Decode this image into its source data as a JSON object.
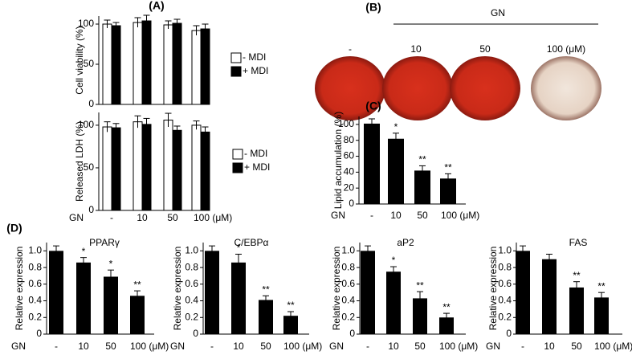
{
  "chart_data": [
    {
      "type": "bar",
      "panel": "(A)",
      "ylabel": "Cell viability (%)",
      "ylim": [
        0,
        110
      ],
      "yticks": [
        0,
        50,
        100
      ],
      "series": [
        {
          "name": "- MDI",
          "color": "#ffffff",
          "values": [
            100,
            102,
            99,
            92
          ],
          "errors": [
            5,
            6,
            5,
            6
          ]
        },
        {
          "name": "+ MDI",
          "color": "#000000",
          "values": [
            98,
            104,
            101,
            94
          ],
          "errors": [
            4,
            7,
            5,
            6
          ]
        }
      ]
    },
    {
      "type": "bar",
      "ylabel": "Released LDH  (%)",
      "xlabel": "GN",
      "categories": [
        "-",
        "10",
        "50",
        "100 (μM)"
      ],
      "ylim": [
        0,
        115
      ],
      "yticks": [
        0,
        50,
        100
      ],
      "series": [
        {
          "name": "- MDI",
          "color": "#ffffff",
          "values": [
            98,
            104,
            106,
            100
          ],
          "errors": [
            6,
            7,
            8,
            5
          ]
        },
        {
          "name": "+ MDI",
          "color": "#000000",
          "values": [
            97,
            101,
            94,
            92
          ],
          "errors": [
            5,
            7,
            5,
            6
          ]
        }
      ]
    },
    {
      "type": "image",
      "panel": "(B)",
      "xlabel": "GN",
      "categories": [
        "-",
        "10",
        "50",
        "100 (μM)"
      ]
    },
    {
      "type": "bar",
      "panel": "(C)",
      "ylabel": "Lipid accumulation (%)",
      "xlabel": "GN",
      "categories": [
        "-",
        "10",
        "50",
        "100 (μM)"
      ],
      "values": [
        101,
        82,
        42,
        32
      ],
      "errors": [
        6,
        7,
        6,
        6
      ],
      "significance": [
        null,
        "*",
        "**",
        "**"
      ],
      "color": "#000000",
      "ylim": [
        0,
        110
      ],
      "yticks": [
        0,
        20,
        40,
        60,
        80,
        100
      ]
    },
    {
      "type": "bar",
      "panel": "(D)",
      "title": "PPARγ",
      "ylabel": "Relative expression",
      "xlabel": "GN",
      "categories": [
        "-",
        "10",
        "50",
        "100 (μM)"
      ],
      "values": [
        1.0,
        0.86,
        0.69,
        0.46
      ],
      "errors": [
        0.06,
        0.06,
        0.08,
        0.06
      ],
      "significance": [
        null,
        "*",
        "*",
        "**"
      ],
      "color": "#000000",
      "ylim": [
        0,
        1.1
      ],
      "yticks": [
        0,
        0.2,
        0.4,
        0.6,
        0.8,
        {
          "value": 1,
          "label": "1.0"
        }
      ]
    },
    {
      "type": "bar",
      "title": "C/EBPα",
      "ylabel": "Relative expression",
      "xlabel": "GN",
      "categories": [
        "-",
        "10",
        "50",
        "100 (μM)"
      ],
      "values": [
        1.0,
        0.86,
        0.41,
        0.22
      ],
      "errors": [
        0.06,
        0.1,
        0.05,
        0.05
      ],
      "significance": [
        null,
        "*",
        "**",
        "**"
      ],
      "color": "#000000",
      "ylim": [
        0,
        1.1
      ],
      "yticks": [
        0,
        0.2,
        0.4,
        0.6,
        0.8,
        {
          "value": 1,
          "label": "1.0"
        }
      ]
    },
    {
      "type": "bar",
      "title": "aP2",
      "ylabel": "Relative expression",
      "xlabel": "GN",
      "categories": [
        "-",
        "10",
        "50",
        "100 (μM)"
      ],
      "values": [
        1.0,
        0.75,
        0.43,
        0.2
      ],
      "errors": [
        0.06,
        0.06,
        0.08,
        0.05
      ],
      "significance": [
        null,
        "*",
        "**",
        "**"
      ],
      "color": "#000000",
      "ylim": [
        0,
        1.1
      ],
      "yticks": [
        0,
        0.2,
        0.4,
        0.6,
        0.8,
        {
          "value": 1,
          "label": "1.0"
        }
      ]
    },
    {
      "type": "bar",
      "title": "FAS",
      "ylabel": "Relative expression",
      "xlabel": "GN",
      "categories": [
        "-",
        "10",
        "50",
        "100 (μM)"
      ],
      "values": [
        1.0,
        0.9,
        0.56,
        0.44
      ],
      "errors": [
        0.06,
        0.06,
        0.07,
        0.06
      ],
      "significance": [
        null,
        null,
        "**",
        "**"
      ],
      "color": "#000000",
      "ylim": [
        0,
        1.1
      ],
      "yticks": [
        0,
        0.2,
        0.4,
        0.6,
        0.8,
        {
          "value": 1,
          "label": "1.0"
        }
      ]
    }
  ]
}
